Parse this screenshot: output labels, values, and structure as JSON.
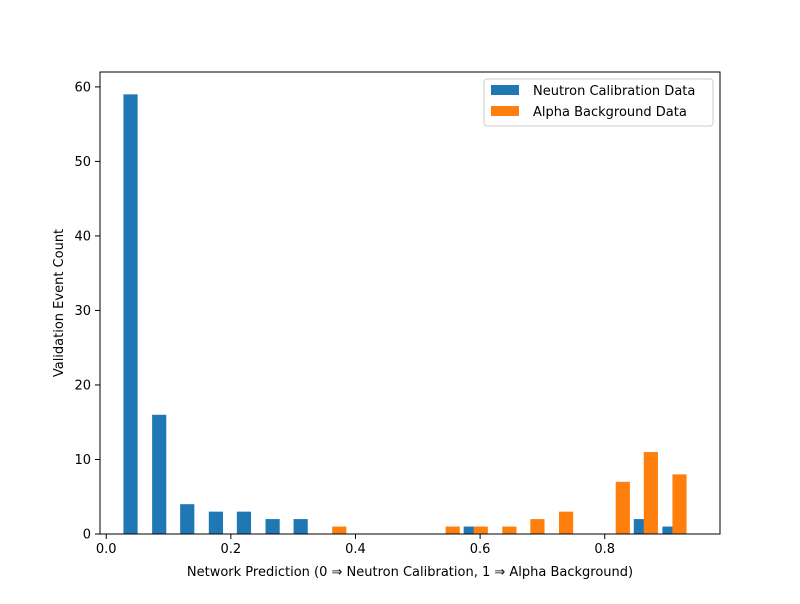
{
  "chart_data": {
    "type": "bar",
    "title": "",
    "xlabel": "Network Prediction (0 ⇒ Neutron Calibration, 1 ⇒ Alpha Background)",
    "ylabel": "Validation Event Count",
    "xlim": [
      -0.01,
      0.985
    ],
    "ylim": [
      0,
      62
    ],
    "xticks": [
      0.0,
      0.2,
      0.4,
      0.6,
      0.8
    ],
    "xtick_labels": [
      "0.0",
      "0.2",
      "0.4",
      "0.6",
      "0.8"
    ],
    "yticks": [
      0,
      10,
      20,
      30,
      40,
      50,
      60
    ],
    "ytick_labels": [
      "0",
      "10",
      "20",
      "30",
      "40",
      "50",
      "60"
    ],
    "bin_width": 0.0455,
    "grid": false,
    "legend_position": "top-right",
    "series": [
      {
        "name": "Neutron Calibration Data",
        "color": "#1f77b4",
        "x": [
          0.039,
          0.085,
          0.13,
          0.176,
          0.221,
          0.267,
          0.312,
          0.358,
          0.403,
          0.449,
          0.494,
          0.54,
          0.585,
          0.631,
          0.676,
          0.722,
          0.767,
          0.813,
          0.858,
          0.904
        ],
        "values": [
          59,
          16,
          4,
          3,
          3,
          2,
          2,
          0,
          0,
          0,
          0,
          0,
          1,
          0,
          0,
          0,
          0,
          0,
          2,
          1
        ]
      },
      {
        "name": "Alpha Background Data",
        "color": "#ff7f0e",
        "x": [
          0.055,
          0.101,
          0.146,
          0.192,
          0.237,
          0.283,
          0.328,
          0.374,
          0.419,
          0.465,
          0.51,
          0.556,
          0.601,
          0.647,
          0.692,
          0.738,
          0.783,
          0.829,
          0.874,
          0.92
        ],
        "values": [
          0,
          0,
          0,
          0,
          0,
          0,
          0,
          1,
          0,
          0,
          0,
          1,
          1,
          1,
          2,
          3,
          0,
          7,
          11,
          8
        ]
      }
    ]
  }
}
